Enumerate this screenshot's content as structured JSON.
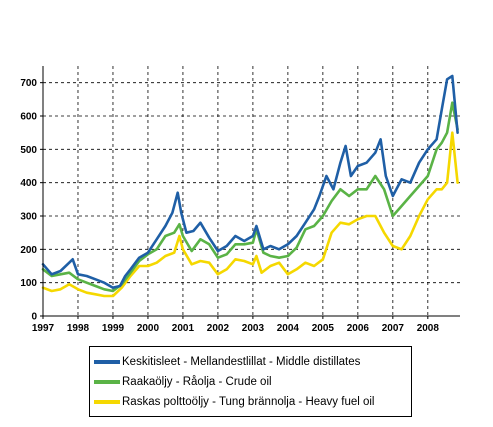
{
  "chart_data": {
    "type": "line",
    "title": "",
    "xlabel": "",
    "ylabel": "",
    "xlim": [
      1997,
      2008.92
    ],
    "ylim": [
      0,
      750
    ],
    "yticks": [
      0,
      100,
      200,
      300,
      400,
      500,
      600,
      700
    ],
    "xticks": [
      "1997",
      "1998",
      "1999",
      "2000",
      "2001",
      "2002",
      "2003",
      "2004",
      "2005",
      "2006",
      "2007",
      "2008"
    ],
    "grid": true,
    "legend_position": "bottom",
    "series": [
      {
        "name": "Keskitisleet - Mellandestlillat - Middle distillates",
        "color": "#1f5fa6",
        "x": [
          1997.0,
          1997.25,
          1997.5,
          1997.75,
          1997.85,
          1998.0,
          1998.25,
          1998.5,
          1998.75,
          1999.0,
          1999.2,
          1999.35,
          1999.5,
          1999.75,
          2000.0,
          2000.25,
          2000.5,
          2000.7,
          2000.85,
          2000.95,
          2001.1,
          2001.3,
          2001.5,
          2001.75,
          2002.0,
          2002.25,
          2002.5,
          2002.75,
          2003.0,
          2003.1,
          2003.3,
          2003.5,
          2003.75,
          2004.0,
          2004.25,
          2004.5,
          2004.75,
          2004.9,
          2005.1,
          2005.3,
          2005.5,
          2005.65,
          2005.8,
          2006.0,
          2006.25,
          2006.5,
          2006.65,
          2006.8,
          2007.0,
          2007.25,
          2007.5,
          2007.75,
          2008.0,
          2008.25,
          2008.4,
          2008.55,
          2008.7,
          2008.85
        ],
        "y": [
          155,
          125,
          135,
          160,
          170,
          125,
          120,
          110,
          100,
          85,
          90,
          120,
          140,
          175,
          190,
          230,
          270,
          310,
          370,
          310,
          250,
          255,
          280,
          235,
          195,
          210,
          240,
          225,
          240,
          270,
          200,
          210,
          200,
          215,
          240,
          280,
          320,
          360,
          420,
          380,
          460,
          510,
          420,
          450,
          460,
          490,
          530,
          420,
          360,
          410,
          400,
          460,
          500,
          530,
          620,
          710,
          720,
          550
        ]
      },
      {
        "name": "Raakaöljy - Råolja - Crude oil",
        "color": "#5ab346",
        "x": [
          1997.0,
          1997.25,
          1997.5,
          1997.75,
          1998.0,
          1998.25,
          1998.5,
          1998.75,
          1999.0,
          1999.25,
          1999.5,
          1999.75,
          2000.0,
          2000.25,
          2000.5,
          2000.75,
          2000.9,
          2001.0,
          2001.25,
          2001.5,
          2001.75,
          2002.0,
          2002.25,
          2002.5,
          2002.75,
          2003.0,
          2003.1,
          2003.3,
          2003.5,
          2003.75,
          2004.0,
          2004.25,
          2004.5,
          2004.75,
          2005.0,
          2005.25,
          2005.5,
          2005.75,
          2006.0,
          2006.25,
          2006.5,
          2006.75,
          2007.0,
          2007.25,
          2007.5,
          2007.75,
          2008.0,
          2008.25,
          2008.4,
          2008.55,
          2008.7,
          2008.85
        ],
        "y": [
          140,
          120,
          125,
          130,
          110,
          100,
          90,
          80,
          75,
          95,
          130,
          165,
          185,
          200,
          240,
          250,
          275,
          240,
          195,
          230,
          215,
          175,
          185,
          215,
          215,
          220,
          260,
          190,
          180,
          175,
          180,
          205,
          260,
          270,
          300,
          345,
          380,
          360,
          380,
          380,
          420,
          380,
          300,
          330,
          360,
          390,
          420,
          500,
          520,
          550,
          640,
          560
        ]
      },
      {
        "name": "Raskas polttoöljy - Tung brännolja - Heavy fuel oil",
        "color": "#f5d800",
        "x": [
          1997.0,
          1997.25,
          1997.5,
          1997.75,
          1998.0,
          1998.25,
          1998.5,
          1998.75,
          1999.0,
          1999.25,
          1999.5,
          1999.75,
          2000.0,
          2000.25,
          2000.5,
          2000.75,
          2000.9,
          2001.0,
          2001.25,
          2001.5,
          2001.75,
          2002.0,
          2002.25,
          2002.5,
          2002.75,
          2003.0,
          2003.1,
          2003.25,
          2003.5,
          2003.75,
          2004.0,
          2004.25,
          2004.5,
          2004.75,
          2005.0,
          2005.25,
          2005.5,
          2005.75,
          2006.0,
          2006.25,
          2006.5,
          2006.75,
          2007.0,
          2007.25,
          2007.5,
          2007.75,
          2008.0,
          2008.25,
          2008.4,
          2008.55,
          2008.7,
          2008.85
        ],
        "y": [
          85,
          75,
          80,
          95,
          80,
          70,
          65,
          60,
          60,
          85,
          120,
          150,
          150,
          160,
          180,
          190,
          240,
          200,
          155,
          165,
          160,
          125,
          140,
          170,
          165,
          155,
          180,
          130,
          150,
          160,
          125,
          140,
          160,
          150,
          170,
          250,
          280,
          275,
          290,
          300,
          300,
          250,
          210,
          200,
          240,
          300,
          350,
          380,
          380,
          400,
          550,
          400
        ]
      }
    ]
  }
}
